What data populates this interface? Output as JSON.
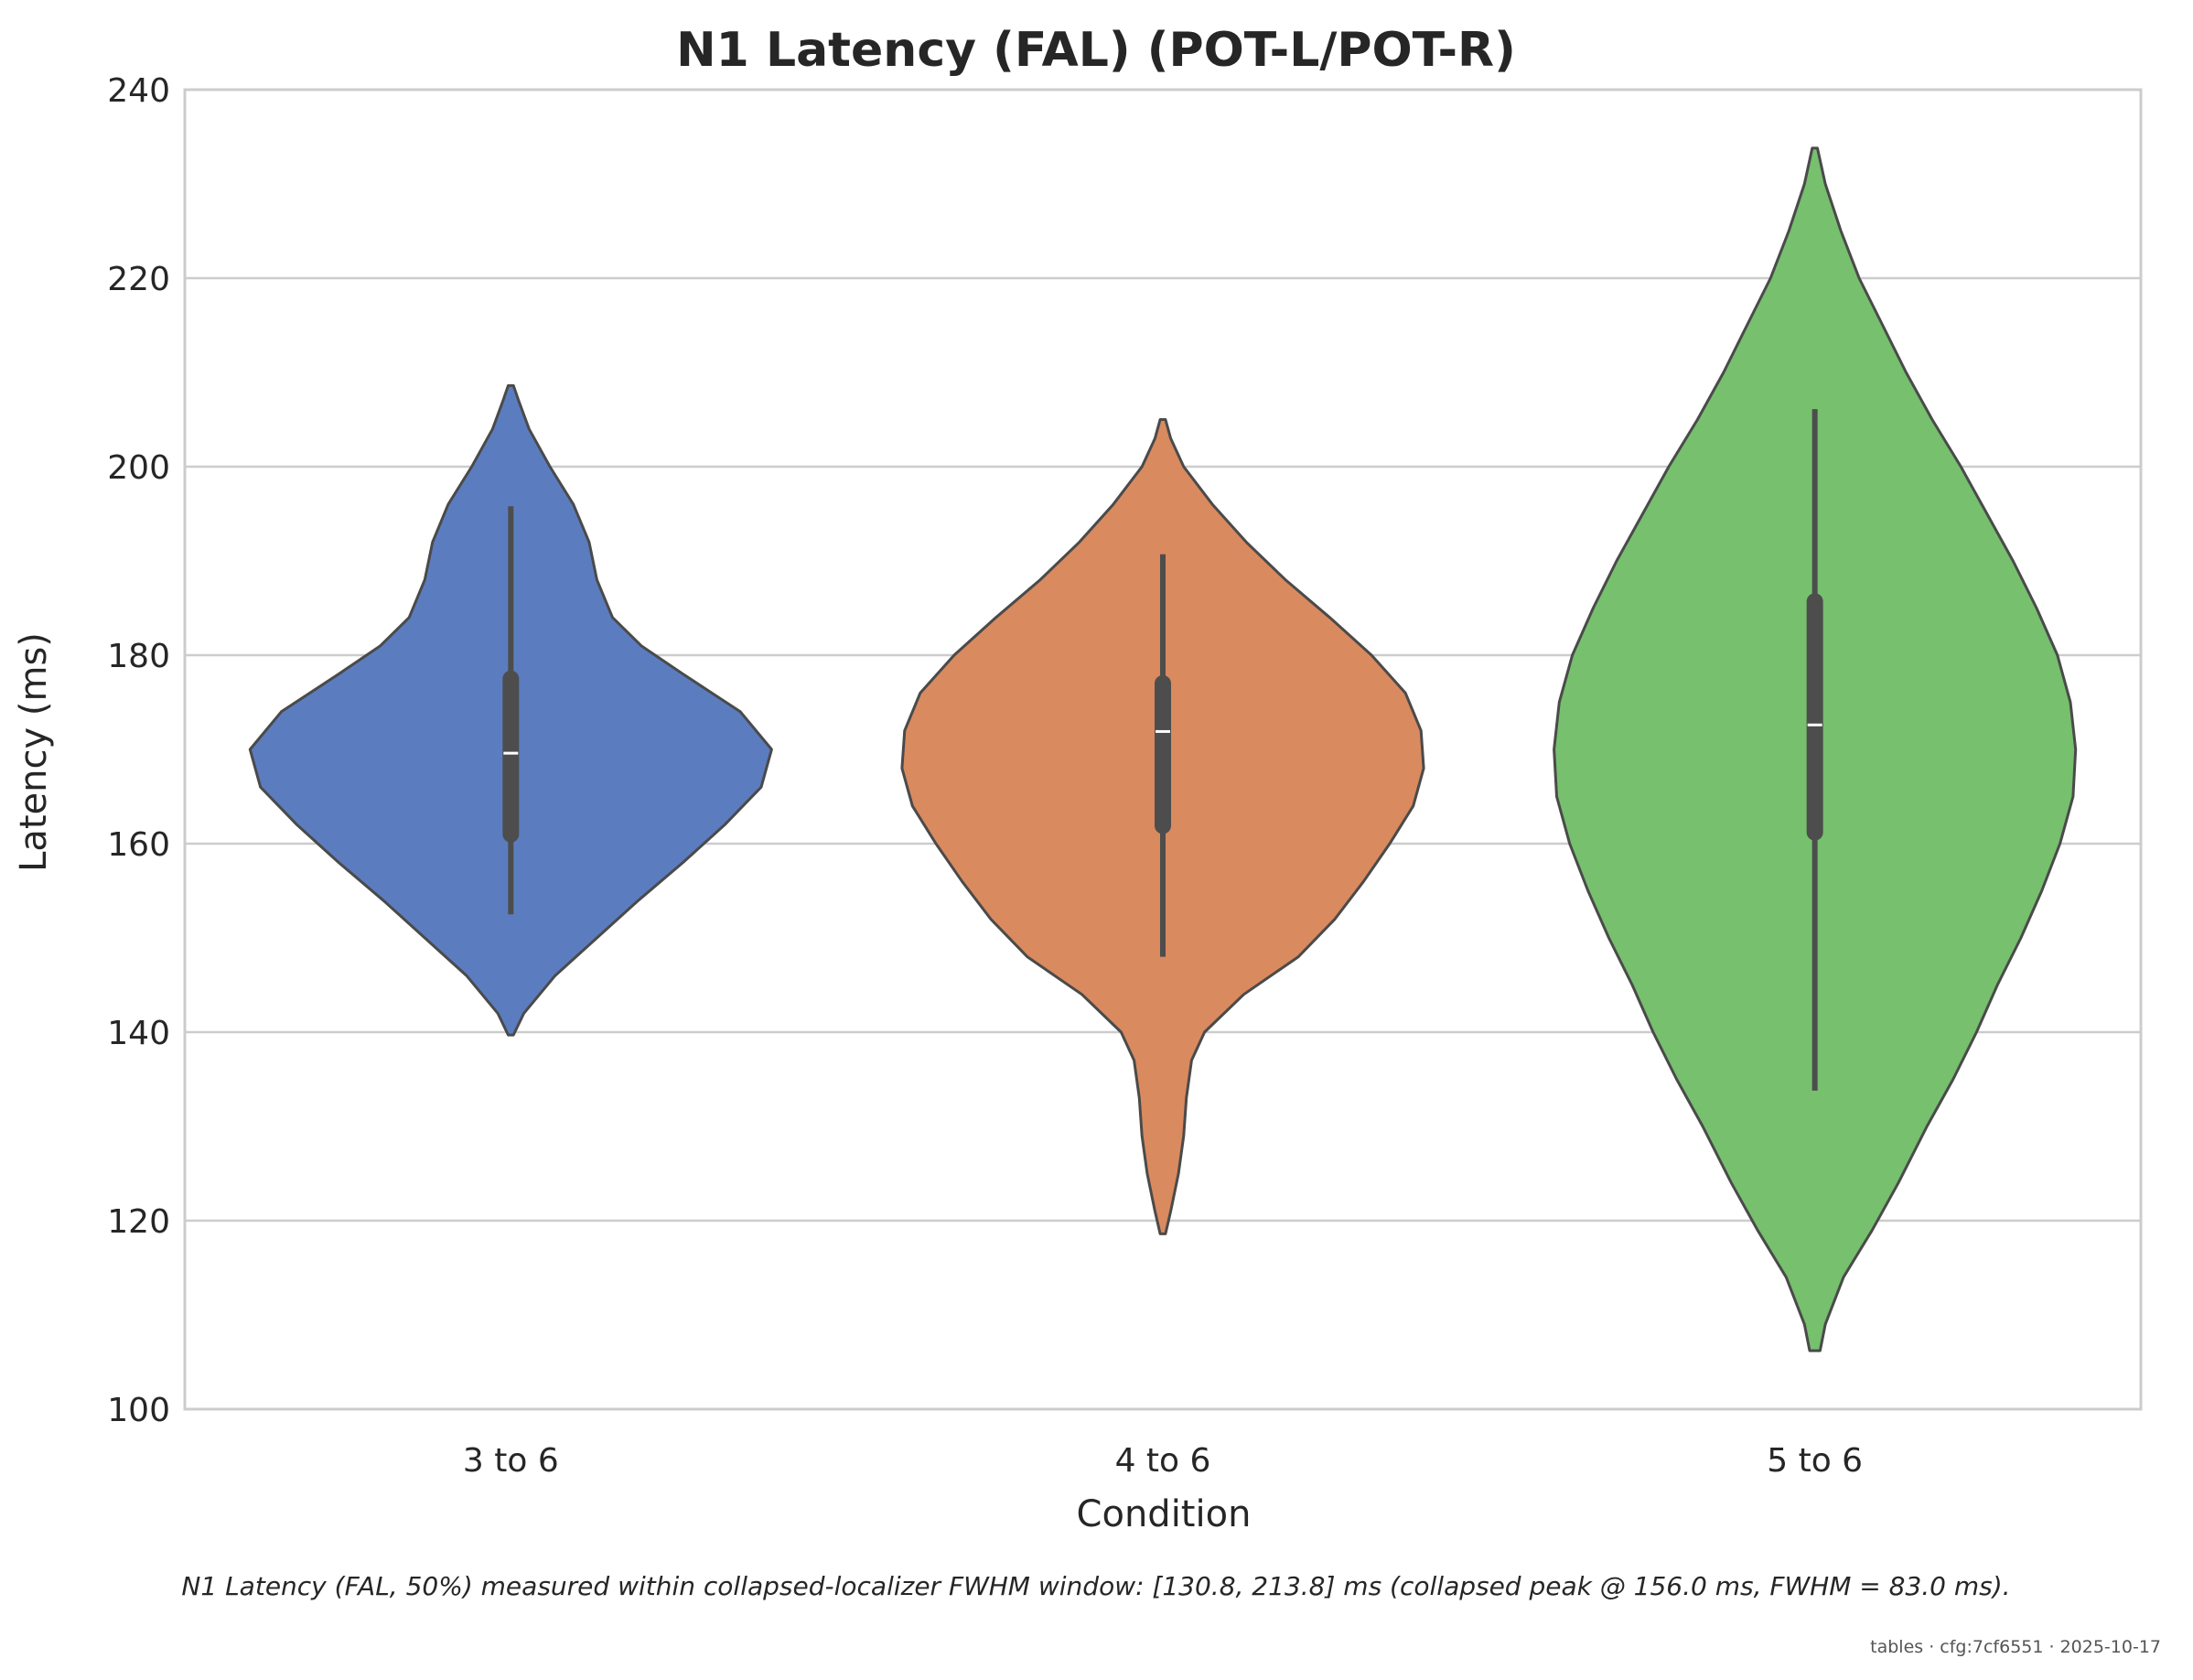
{
  "chart_data": {
    "type": "violin",
    "title": "N1 Latency (FAL) (POT-L/POT-R)",
    "xlabel": "Condition",
    "ylabel": "Latency (ms)",
    "ylim": [
      100,
      240
    ],
    "yticks": [
      100,
      120,
      140,
      160,
      180,
      200,
      220,
      240
    ],
    "grid": "horizontal",
    "categories": [
      "3 to 6",
      "4 to 6",
      "5 to 6"
    ],
    "series": [
      {
        "category": "3 to 6",
        "color": "#5b7dc0",
        "median": 169.6,
        "q1": 161.0,
        "q3": 177.5,
        "whisker_low": 152.5,
        "whisker_high": 195.8,
        "kde_min": 139.7,
        "kde_max": 208.6,
        "density": [
          [
            139.7,
            0.01
          ],
          [
            142,
            0.05
          ],
          [
            146,
            0.17
          ],
          [
            150,
            0.33
          ],
          [
            154,
            0.49
          ],
          [
            158,
            0.66
          ],
          [
            162,
            0.82
          ],
          [
            166,
            0.96
          ],
          [
            170,
            1.0
          ],
          [
            174,
            0.88
          ],
          [
            178,
            0.66
          ],
          [
            181,
            0.5
          ],
          [
            184,
            0.39
          ],
          [
            188,
            0.33
          ],
          [
            192,
            0.3
          ],
          [
            196,
            0.24
          ],
          [
            200,
            0.15
          ],
          [
            204,
            0.07
          ],
          [
            207,
            0.03
          ],
          [
            208.6,
            0.01
          ]
        ]
      },
      {
        "category": "4 to 6",
        "color": "#d98a5f",
        "median": 171.9,
        "q1": 161.9,
        "q3": 177.0,
        "whisker_low": 148.0,
        "whisker_high": 190.7,
        "kde_min": 118.6,
        "kde_max": 205.0,
        "density": [
          [
            118.6,
            0.01
          ],
          [
            121,
            0.03
          ],
          [
            125,
            0.06
          ],
          [
            129,
            0.08
          ],
          [
            133,
            0.09
          ],
          [
            137,
            0.11
          ],
          [
            140,
            0.16
          ],
          [
            144,
            0.31
          ],
          [
            148,
            0.52
          ],
          [
            152,
            0.66
          ],
          [
            156,
            0.77
          ],
          [
            160,
            0.87
          ],
          [
            164,
            0.96
          ],
          [
            168,
            1.0
          ],
          [
            172,
            0.99
          ],
          [
            176,
            0.93
          ],
          [
            180,
            0.8
          ],
          [
            184,
            0.64
          ],
          [
            188,
            0.47
          ],
          [
            192,
            0.32
          ],
          [
            196,
            0.19
          ],
          [
            200,
            0.08
          ],
          [
            203,
            0.03
          ],
          [
            205,
            0.01
          ]
        ]
      },
      {
        "category": "5 to 6",
        "color": "#76c06e",
        "median": 172.6,
        "q1": 161.2,
        "q3": 185.7,
        "whisker_low": 133.8,
        "whisker_high": 206.1,
        "kde_min": 106.2,
        "kde_max": 233.8,
        "density": [
          [
            106.2,
            0.02
          ],
          [
            109,
            0.04
          ],
          [
            114,
            0.11
          ],
          [
            119,
            0.22
          ],
          [
            124,
            0.32
          ],
          [
            130,
            0.43
          ],
          [
            135,
            0.53
          ],
          [
            140,
            0.62
          ],
          [
            145,
            0.7
          ],
          [
            150,
            0.79
          ],
          [
            155,
            0.87
          ],
          [
            160,
            0.94
          ],
          [
            165,
            0.99
          ],
          [
            170,
            1.0
          ],
          [
            175,
            0.98
          ],
          [
            180,
            0.93
          ],
          [
            185,
            0.85
          ],
          [
            190,
            0.76
          ],
          [
            195,
            0.66
          ],
          [
            200,
            0.56
          ],
          [
            205,
            0.45
          ],
          [
            210,
            0.35
          ],
          [
            215,
            0.26
          ],
          [
            220,
            0.17
          ],
          [
            225,
            0.1
          ],
          [
            230,
            0.04
          ],
          [
            233.8,
            0.01
          ]
        ]
      }
    ]
  },
  "caption": "N1 Latency (FAL, 50%) measured within collapsed-localizer FWHM window: [130.8, 213.8] ms (collapsed peak @ 156.0 ms, FWHM = 83.0 ms).",
  "footer": "tables · cfg:7cf6551 · 2025-10-17"
}
